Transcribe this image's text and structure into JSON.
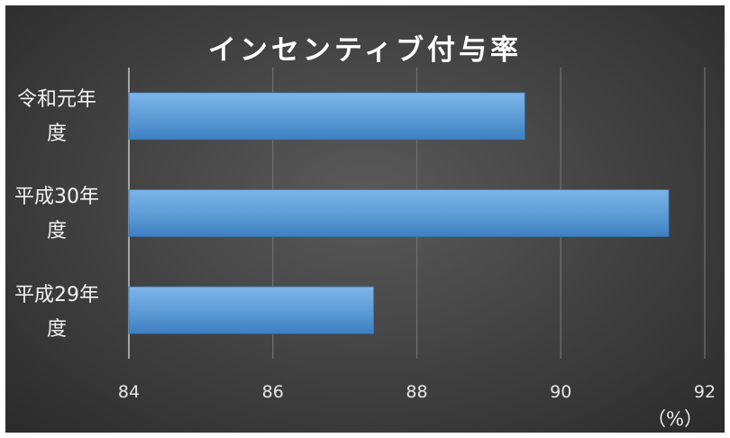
{
  "chart_data": {
    "type": "bar",
    "orientation": "horizontal",
    "title": "インセンティブ付与率",
    "categories": [
      "令和元年\n度",
      "平成30年\n度",
      "平成29年\n度"
    ],
    "values": [
      89.5,
      91.5,
      87.4
    ],
    "xlim": [
      84,
      92
    ],
    "x_ticks": [
      "84",
      "86",
      "88",
      "90",
      "92"
    ],
    "unit": "（%）",
    "grid": "vertical",
    "bar_color": "#5b9bd5",
    "background_color": "#404040"
  }
}
